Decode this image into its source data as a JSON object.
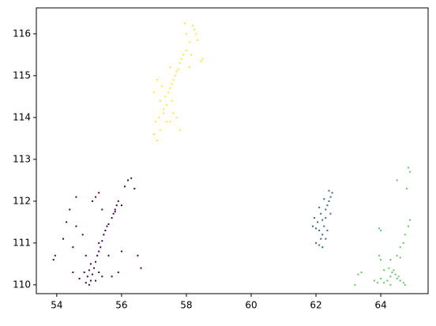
{
  "chart_data": {
    "type": "scatter",
    "xlim": [
      53.37,
      65.46
    ],
    "ylim": [
      109.79,
      116.62
    ],
    "xticks": [
      54,
      56,
      58,
      60,
      62,
      64
    ],
    "yticks": [
      110,
      111,
      112,
      113,
      114,
      115,
      116
    ],
    "series": [
      {
        "color": "#440154",
        "x": [
          55.0,
          55.05,
          54.95,
          55.1,
          55.0,
          55.15,
          55.05,
          55.2,
          55.25,
          55.3,
          55.35,
          55.3,
          55.4,
          55.45,
          55.5,
          55.55,
          55.6,
          55.7,
          55.75,
          55.8,
          55.85,
          55.9,
          55.8,
          54.9,
          55.2,
          54.85,
          55.3,
          55.4,
          53.9,
          53.95,
          54.2,
          54.3,
          54.4,
          54.5,
          54.5,
          54.7,
          54.9,
          54.6,
          54.8,
          55.2,
          55.4,
          55.6,
          55.7,
          55.9,
          56.0,
          56.1,
          56.2,
          56.3,
          56.4,
          56.5,
          56.6,
          56.0,
          55.3,
          55.1,
          54.6
        ],
        "values": [
          110.0,
          110.1,
          110.2,
          110.25,
          110.35,
          110.4,
          110.5,
          110.55,
          110.7,
          110.8,
          110.9,
          111.0,
          111.05,
          111.2,
          111.3,
          111.4,
          111.45,
          111.6,
          111.7,
          111.8,
          111.9,
          112.0,
          111.75,
          110.05,
          110.1,
          110.3,
          110.3,
          110.2,
          110.6,
          110.7,
          111.1,
          111.5,
          111.8,
          110.9,
          110.3,
          110.15,
          110.7,
          111.4,
          111.2,
          112.1,
          111.8,
          110.7,
          110.2,
          110.3,
          110.8,
          112.35,
          112.5,
          112.55,
          112.3,
          110.7,
          110.4,
          111.9,
          112.2,
          112.0,
          112.1
        ]
      },
      {
        "color": "#fde725",
        "x": [
          57.0,
          57.1,
          57.2,
          57.05,
          57.15,
          57.3,
          57.2,
          57.35,
          57.45,
          57.4,
          57.5,
          57.55,
          57.6,
          57.65,
          57.7,
          57.75,
          57.8,
          57.85,
          57.9,
          58.0,
          58.1,
          58.0,
          58.2,
          57.95,
          58.3,
          58.35,
          58.15,
          58.5,
          58.45,
          57.3,
          57.0,
          57.1,
          57.25,
          57.5,
          57.7,
          57.8,
          57.4,
          57.6,
          58.25,
          57.5,
          58.1,
          57.55
        ],
        "values": [
          113.6,
          113.45,
          113.7,
          113.9,
          114.0,
          114.2,
          114.4,
          114.5,
          114.6,
          114.3,
          114.7,
          114.8,
          114.9,
          115.0,
          115.1,
          115.15,
          115.3,
          115.4,
          115.5,
          115.6,
          115.8,
          116.0,
          116.2,
          116.25,
          116.0,
          115.85,
          115.5,
          115.4,
          115.35,
          114.1,
          114.6,
          114.9,
          114.75,
          113.9,
          114.0,
          113.7,
          113.9,
          114.1,
          116.1,
          115.2,
          115.2,
          114.4
        ]
      },
      {
        "color": "#31688e",
        "x": [
          62.0,
          62.1,
          62.15,
          62.2,
          62.1,
          62.25,
          62.05,
          62.2,
          62.3,
          62.15,
          62.3,
          62.35,
          62.4,
          62.45,
          62.5,
          62.4,
          62.0,
          61.95,
          62.3,
          62.35,
          62.2,
          62.45,
          62.25,
          61.9,
          62.1
        ],
        "values": [
          111.0,
          110.95,
          111.1,
          111.2,
          111.3,
          111.4,
          111.5,
          111.55,
          111.6,
          111.7,
          111.8,
          111.9,
          112.0,
          112.1,
          112.2,
          112.25,
          111.35,
          111.6,
          111.1,
          111.3,
          110.9,
          111.7,
          112.05,
          111.4,
          111.85
        ]
      },
      {
        "color": "#5ec962",
        "x": [
          64.1,
          64.2,
          64.3,
          64.35,
          64.4,
          64.25,
          64.45,
          64.5,
          64.55,
          64.6,
          64.7,
          64.75,
          64.3,
          64.0,
          63.9,
          63.8,
          63.3,
          63.4,
          63.2,
          64.0,
          63.95,
          64.3,
          64.5,
          64.6,
          64.7,
          64.75,
          64.85,
          64.9,
          64.0,
          63.95,
          64.5,
          64.8,
          64.85,
          64.9,
          64.6,
          64.1
        ],
        "values": [
          110.05,
          110.1,
          110.2,
          110.3,
          110.35,
          110.4,
          110.25,
          110.15,
          110.2,
          110.1,
          110.05,
          110.0,
          110.0,
          110.15,
          110.05,
          110.1,
          110.25,
          110.3,
          110.0,
          110.6,
          110.7,
          110.6,
          110.7,
          110.9,
          111.0,
          111.2,
          111.4,
          111.55,
          111.3,
          111.35,
          112.5,
          112.3,
          112.8,
          112.7,
          110.65,
          110.35
        ]
      }
    ]
  }
}
